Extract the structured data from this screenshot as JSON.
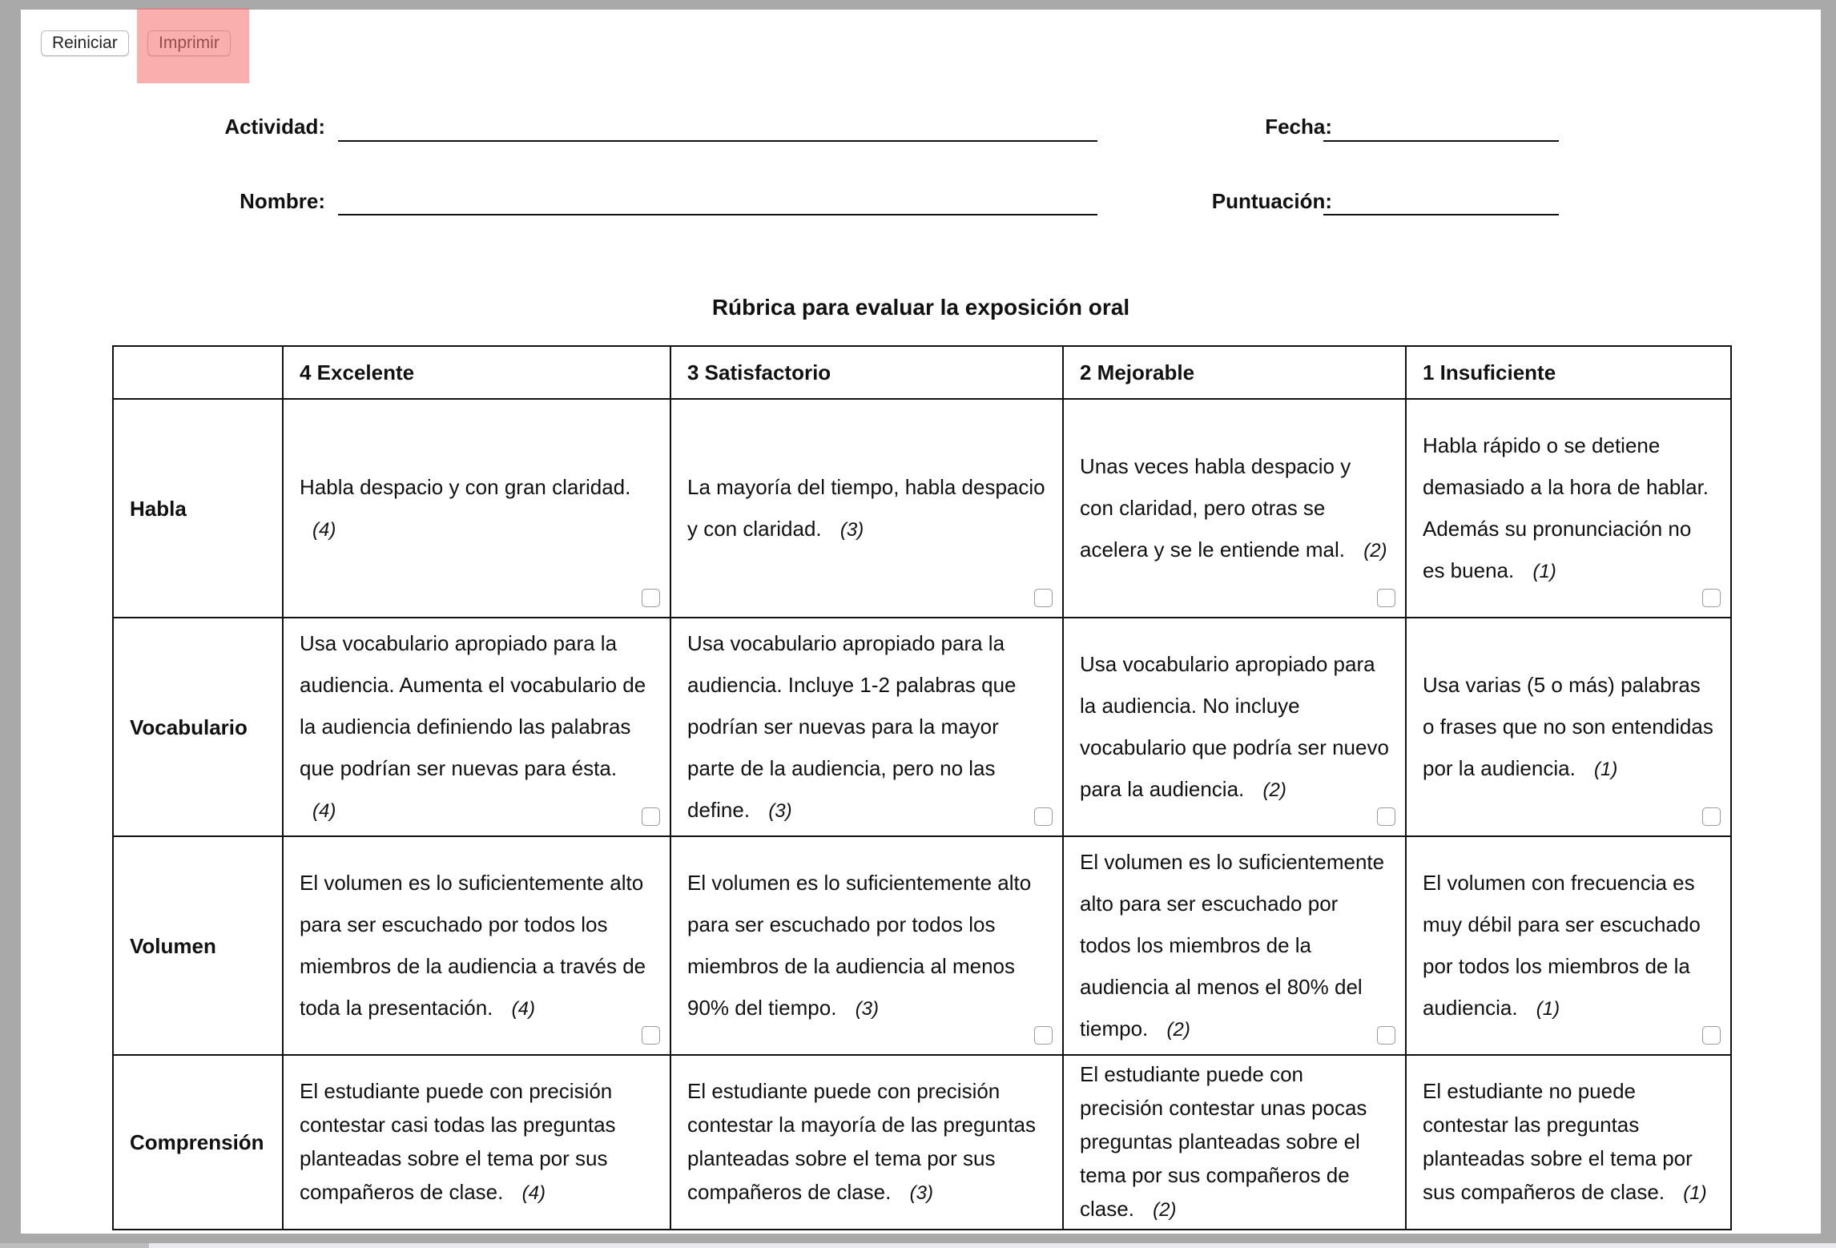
{
  "toolbar": {
    "reset_label": "Reiniciar",
    "print_label": "Imprimir"
  },
  "form": {
    "activity_label": "Actividad:",
    "date_label": "Fecha:",
    "name_label": "Nombre:",
    "score_label": "Puntuación:"
  },
  "rubric": {
    "title": "Rúbrica para evaluar la exposición oral",
    "headers": [
      "",
      "4 Excelente",
      "3 Satisfactorio",
      "2 Mejorable",
      "1 Insuficiente"
    ],
    "rows": [
      {
        "criterion": "Habla",
        "cells": [
          {
            "text": "Habla despacio y con gran claridad.",
            "score": "(4)"
          },
          {
            "text": "La mayoría del tiempo, habla despacio y con claridad.",
            "score": "(3)"
          },
          {
            "text": "Unas veces habla despacio y con claridad, pero otras se acelera y se le entiende mal.",
            "score": "(2)"
          },
          {
            "text": "Habla rápido o se detiene demasiado a la hora de hablar. Además su pronunciación no es buena.",
            "score": "(1)"
          }
        ]
      },
      {
        "criterion": "Vocabulario",
        "cells": [
          {
            "text": "Usa vocabulario apropiado para la audiencia. Aumenta el vocabulario de la audiencia definiendo las palabras que podrían ser nuevas para ésta.",
            "score": "(4)"
          },
          {
            "text": "Usa vocabulario apropiado para la audiencia. Incluye 1-2 palabras que podrían ser nuevas para la mayor parte de la audiencia, pero no las define.",
            "score": "(3)"
          },
          {
            "text": "Usa vocabulario apropiado para la audiencia. No incluye vocabulario que podría ser nuevo para la audiencia.",
            "score": "(2)"
          },
          {
            "text": "Usa varias (5 o más) palabras o frases que no son entendidas por la audiencia.",
            "score": "(1)"
          }
        ]
      },
      {
        "criterion": "Volumen",
        "cells": [
          {
            "text": "El volumen es lo suficientemente alto para ser escuchado por todos los miembros de la audiencia a través de toda la presentación.",
            "score": "(4)"
          },
          {
            "text": "El volumen es lo suficientemente alto para ser escuchado por todos los miembros de la audiencia al menos 90% del tiempo.",
            "score": "(3)"
          },
          {
            "text": "El volumen es lo suficientemente alto para ser escuchado por todos los miembros de la audiencia al menos el 80% del tiempo.",
            "score": "(2)"
          },
          {
            "text": "El volumen con frecuencia es muy débil para ser escuchado por todos los miembros de la audiencia.",
            "score": "(1)"
          }
        ]
      },
      {
        "criterion": "Comprensión",
        "cells": [
          {
            "text": "El estudiante puede con precisión contestar casi todas las preguntas planteadas sobre el tema por sus compañeros de clase.",
            "score": "(4)"
          },
          {
            "text": "El estudiante puede con precisión contestar la mayoría de las preguntas planteadas sobre el tema por sus compañeros de clase.",
            "score": "(3)"
          },
          {
            "text": "El estudiante puede con precisión contestar unas pocas preguntas planteadas sobre el tema por sus compañeros de clase.",
            "score": "(2)"
          },
          {
            "text": "El estudiante no puede contestar las preguntas planteadas sobre el tema por sus compañeros de clase.",
            "score": "(1)"
          }
        ]
      }
    ]
  },
  "colors": {
    "highlight": "#f56e6e"
  }
}
